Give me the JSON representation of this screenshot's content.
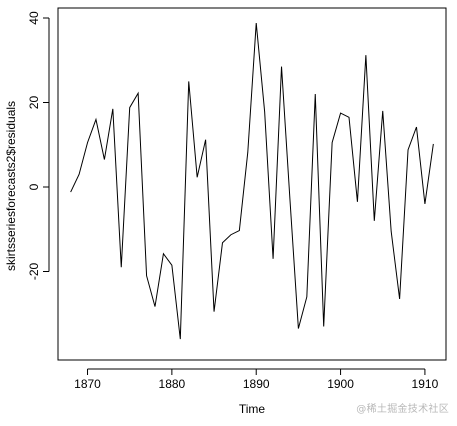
{
  "chart_data": {
    "type": "line",
    "title": "",
    "xlabel": "Time",
    "ylabel": "skirtsseriesforecasts2$residuals",
    "xlim": [
      1866.5,
      1912.5
    ],
    "ylim": [
      -40,
      40
    ],
    "xticks": [
      1870,
      1880,
      1890,
      1900,
      1910
    ],
    "yticks": [
      -20,
      0,
      20,
      40
    ],
    "grid": false,
    "legend": "none",
    "series": [
      {
        "x": [
          1868,
          1869,
          1870,
          1871,
          1872,
          1873,
          1874,
          1875,
          1876,
          1877,
          1878,
          1879,
          1880,
          1881,
          1882,
          1883,
          1884,
          1885,
          1886,
          1887,
          1888,
          1889,
          1890,
          1891,
          1892,
          1893,
          1894,
          1895,
          1896,
          1897,
          1898,
          1899,
          1900,
          1901,
          1902,
          1903,
          1904,
          1905,
          1906,
          1907,
          1908,
          1909,
          1910,
          1911
        ],
        "values": [
          -1.2,
          3.0,
          10.5,
          16.0,
          6.5,
          18.5,
          -19.0,
          18.8,
          22.2,
          -21.0,
          -28.3,
          -15.8,
          -18.5,
          -36.0,
          25.0,
          2.3,
          11.2,
          -29.5,
          -13.2,
          -11.3,
          -10.3,
          8.2,
          38.8,
          17.8,
          -17.0,
          28.5,
          -3.0,
          -33.5,
          -26.0,
          22.0,
          -33.0,
          10.5,
          17.5,
          16.5,
          -3.5,
          31.2,
          -8.0,
          18.0,
          -10.5,
          -26.5,
          8.8,
          14.2,
          -4.0,
          10.2
        ]
      }
    ],
    "color": "#000000"
  },
  "watermark": "@稀土掘金技术社区"
}
